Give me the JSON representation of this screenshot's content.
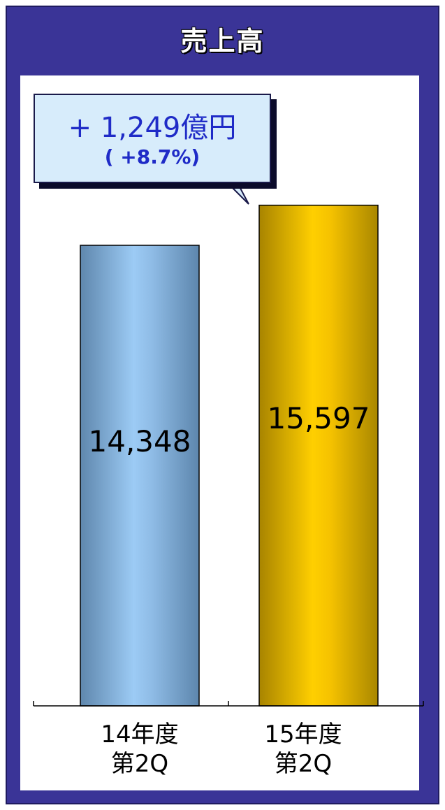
{
  "title": "売上高",
  "callout": {
    "main": "+ 1,249億円",
    "sub": "( +8.7%)"
  },
  "colors": {
    "frame": "#3a3497",
    "bar1": "#8fbce6",
    "bar2": "#f5c200",
    "callout_bg": "#d7ecfb",
    "callout_text": "#1f2bc7"
  },
  "chart_data": {
    "type": "bar",
    "title": "売上高",
    "categories": [
      "14年度 第2Q",
      "15年度 第2Q"
    ],
    "category_lines": [
      [
        "14年度",
        "第2Q"
      ],
      [
        "15年度",
        "第2Q"
      ]
    ],
    "values": [
      14348,
      15597
    ],
    "value_labels": [
      "14,348",
      "15,597"
    ],
    "ylim": [
      0,
      17200
    ],
    "grid": false,
    "legend": "none"
  }
}
